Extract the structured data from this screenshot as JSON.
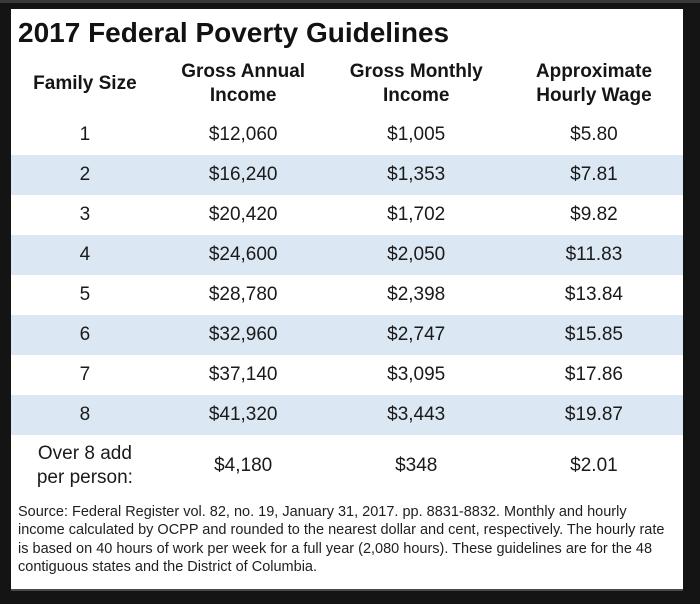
{
  "colors": {
    "frame_background": "#141414",
    "sheet_background": "#ffffff",
    "stripe_blue": "#dbe7f3",
    "text": "#1a1a1a"
  },
  "chart_data": {
    "type": "table",
    "title": "2017 Federal Poverty Guidelines",
    "columns": [
      "Family Size",
      "Gross Annual Income",
      "Gross Monthly Income",
      "Approximate Hourly Wage"
    ],
    "rows": [
      [
        "1",
        "$12,060",
        "$1,005",
        "$5.80"
      ],
      [
        "2",
        "$16,240",
        "$1,353",
        "$7.81"
      ],
      [
        "3",
        "$20,420",
        "$1,702",
        "$9.82"
      ],
      [
        "4",
        "$24,600",
        "$2,050",
        "$11.83"
      ],
      [
        "5",
        "$28,780",
        "$2,398",
        "$13.84"
      ],
      [
        "6",
        "$32,960",
        "$2,747",
        "$15.85"
      ],
      [
        "7",
        "$37,140",
        "$3,095",
        "$17.86"
      ],
      [
        "8",
        "$41,320",
        "$3,443",
        "$19.87"
      ],
      [
        "Over 8 add per person:",
        "$4,180",
        "$348",
        "$2.01"
      ]
    ],
    "layout": {
      "row_striping": "alternating white and light blue",
      "grid": false,
      "header_bold": true
    },
    "footnote": "Source: Federal Register vol. 82, no. 19, January 31, 2017. pp. 8831-8832. Monthly and hourly income calculated by OCPP and rounded to the nearest dollar and cent, respectively. The hourly rate is based on 40 hours of work per week for a full year (2,080 hours). These guidelines are for the 48 contiguous states and the District of Columbia."
  }
}
